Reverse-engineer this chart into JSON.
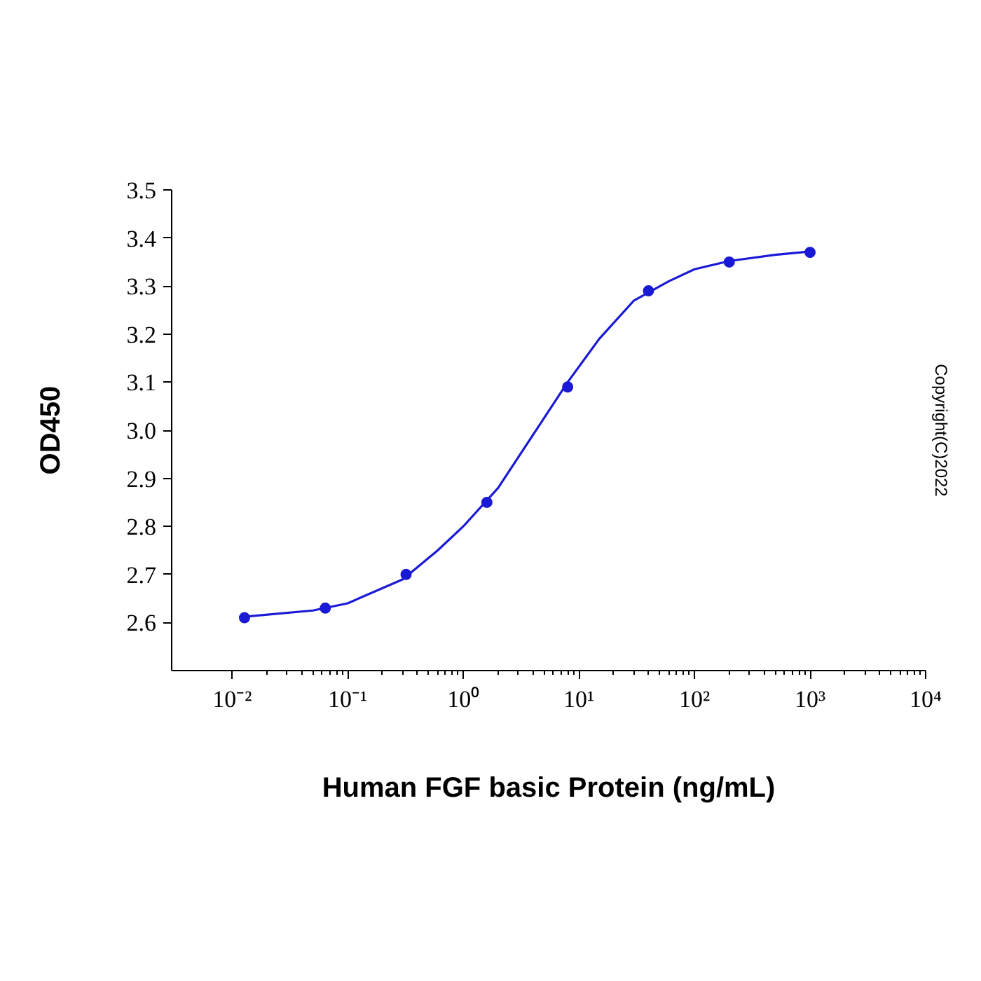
{
  "chart_data": {
    "type": "scatter",
    "xlabel": "Human FGF basic Protein (ng/mL)",
    "ylabel": "OD450",
    "log": "x",
    "grid": false,
    "marker": "circle",
    "line_style": "solid",
    "xlim": [
      0.003,
      10000
    ],
    "ylim": [
      2.5,
      3.5
    ],
    "xticks": [
      {
        "value": 0.01,
        "label": "10⁻²"
      },
      {
        "value": 0.1,
        "label": "10⁻¹"
      },
      {
        "value": 1,
        "label": "10⁰"
      },
      {
        "value": 10,
        "label": "10¹"
      },
      {
        "value": 100,
        "label": "10²"
      },
      {
        "value": 1000,
        "label": "10³"
      },
      {
        "value": 10000,
        "label": "10⁴"
      }
    ],
    "yticks": [
      2.6,
      2.7,
      2.8,
      2.9,
      {
        "value": 3.0,
        "label": "3.0"
      },
      3.1,
      3.2,
      3.3,
      3.4,
      3.5
    ],
    "annotations": [
      "Copyright(C)2022"
    ],
    "series": [
      {
        "type": "line",
        "marker": "none",
        "color": "#1a1ad6",
        "x": [
          0.0128,
          0.05,
          0.1,
          0.3,
          0.6,
          1,
          2,
          4,
          8,
          15,
          30,
          60,
          100,
          200,
          500,
          1000
        ],
        "values": [
          2.612,
          2.625,
          2.64,
          2.69,
          2.75,
          2.8,
          2.88,
          2.99,
          3.1,
          3.19,
          3.27,
          3.31,
          3.335,
          3.352,
          3.365,
          3.372
        ]
      },
      {
        "color": "#1a1ad6",
        "x": [
          0.0128,
          0.064,
          0.32,
          1.6,
          8,
          40,
          200,
          1000
        ],
        "values": [
          2.61,
          2.63,
          2.7,
          2.85,
          3.09,
          3.29,
          3.35,
          3.37
        ]
      }
    ]
  }
}
